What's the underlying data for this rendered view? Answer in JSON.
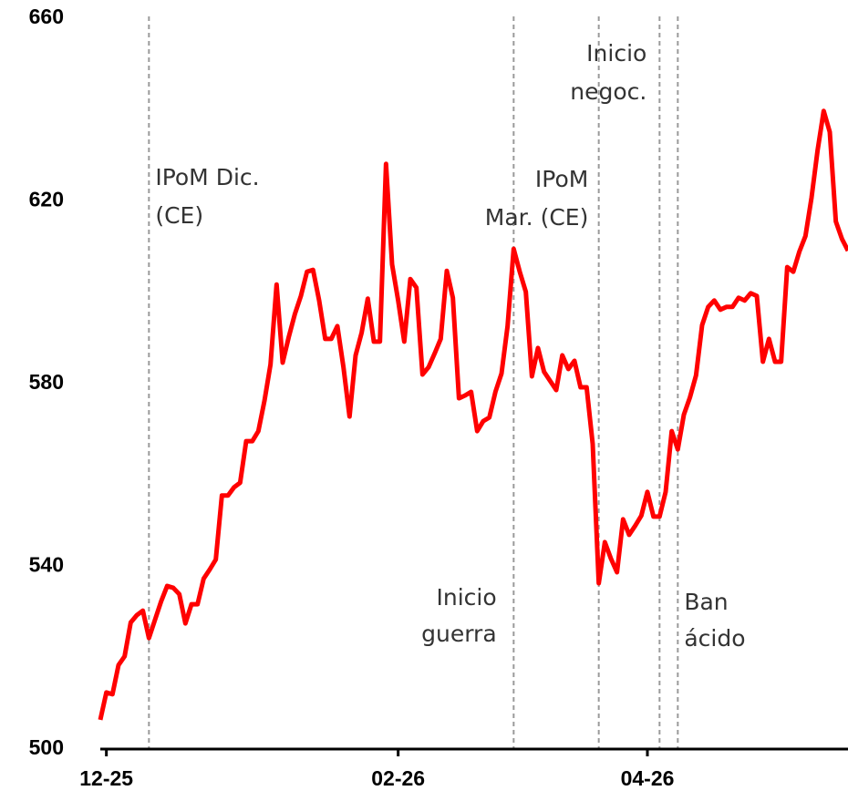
{
  "chart_data": {
    "type": "line",
    "categories": [
      null,
      "12-25",
      null,
      null,
      null,
      null,
      null,
      null,
      null,
      null,
      null,
      null,
      null,
      null,
      null,
      null,
      null,
      null,
      null,
      null,
      null,
      null,
      null,
      null,
      null,
      null,
      null,
      null,
      null,
      null,
      null,
      null,
      null,
      null,
      null,
      null,
      null,
      null,
      null,
      null,
      null,
      null,
      null,
      null,
      null,
      null,
      null,
      null,
      null,
      "02-26",
      null,
      null,
      null,
      null,
      null,
      null,
      null,
      null,
      null,
      null,
      null,
      null,
      null,
      null,
      null,
      null,
      null,
      null,
      null,
      null,
      null,
      null,
      null,
      null,
      null,
      null,
      null,
      null,
      null,
      null,
      null,
      null,
      null,
      null,
      null,
      null,
      null,
      null,
      null,
      null,
      "04-26",
      null,
      null,
      null,
      null,
      null,
      null,
      null,
      null,
      null,
      null,
      null,
      null,
      null,
      null,
      null,
      null,
      null,
      null,
      null,
      null,
      null,
      null,
      null,
      null,
      null,
      null,
      null,
      null,
      null,
      null,
      null,
      null,
      null
    ],
    "series": [
      {
        "color": "#ff0000",
        "values": [
          506.4,
          512.4,
          512.0,
          518.4,
          520.3,
          527.7,
          529.3,
          530.3,
          524.3,
          528.3,
          532.3,
          535.7,
          535.3,
          533.9,
          527.5,
          531.7,
          531.7,
          537.3,
          539.3,
          541.5,
          555.5,
          555.5,
          557.3,
          558.3,
          567.4,
          567.4,
          569.6,
          576.2,
          584.2,
          601.7,
          584.6,
          590.2,
          595.2,
          599.2,
          604.5,
          604.9,
          598.2,
          589.8,
          589.8,
          592.6,
          583.6,
          572.8,
          586.2,
          591.2,
          598.6,
          589.2,
          589.2,
          628.1,
          606.1,
          598.2,
          589.2,
          602.9,
          601.0,
          582.0,
          583.6,
          586.6,
          589.8,
          604.7,
          598.8,
          576.8,
          577.4,
          578.2,
          569.6,
          571.8,
          572.6,
          578.2,
          582.2,
          592.6,
          609.5,
          604.5,
          600.1,
          581.6,
          587.8,
          582.6,
          580.6,
          578.6,
          586.2,
          583.2,
          585.0,
          579.2,
          579.2,
          566.8,
          536.3,
          545.3,
          541.7,
          538.7,
          550.3,
          546.9,
          548.9,
          551.1,
          556.3,
          550.9,
          550.9,
          556.3,
          569.6,
          565.6,
          573.2,
          577.0,
          581.8,
          592.8,
          596.8,
          598.2,
          596.2,
          596.8,
          596.8,
          598.8,
          598.2,
          599.8,
          599.2,
          584.8,
          589.8,
          584.8,
          584.8,
          605.5,
          604.5,
          608.9,
          612.3,
          620.7,
          631.1,
          639.7,
          635.1,
          615.5,
          611.7,
          609.1
        ]
      }
    ],
    "ylim": [
      500,
      660
    ],
    "yticks": [
      500,
      540,
      580,
      620,
      660
    ],
    "events": [
      {
        "x": 8,
        "label": [
          "IPoM Dic.",
          "(CE)"
        ]
      },
      {
        "x": 68,
        "label": [
          "IPoM",
          "Mar. (CE)"
        ]
      },
      {
        "x": 82,
        "label": [
          "Inicio",
          "guerra"
        ]
      },
      {
        "x": 92,
        "label": [
          "Inicio",
          "negoc."
        ]
      },
      {
        "x": 95,
        "label": [
          "Ban",
          "ácido"
        ]
      }
    ]
  }
}
